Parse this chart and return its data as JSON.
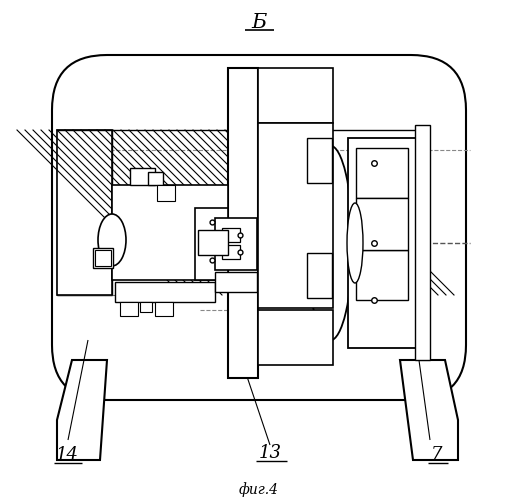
{
  "fig_label": "фиг.4",
  "label_B": "Б",
  "label_14": "14",
  "label_13": "13",
  "label_7": "7",
  "bg_color": "#ffffff",
  "line_color": "#000000",
  "figsize": [
    5.18,
    5.0
  ],
  "dpi": 100
}
